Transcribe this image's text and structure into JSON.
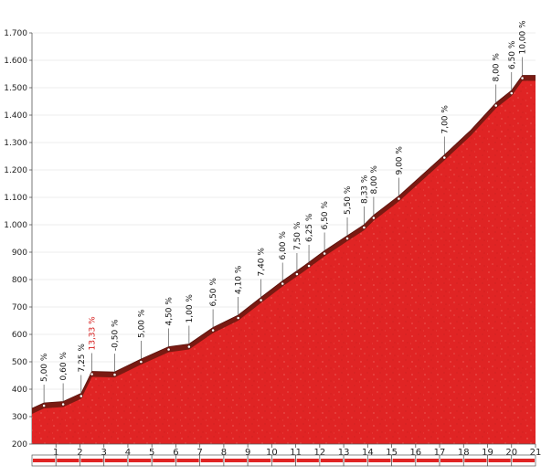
{
  "chart_data": {
    "type": "area",
    "title": "",
    "xlabel": "",
    "ylabel": "",
    "xlim": [
      0,
      21
    ],
    "ylim": [
      200,
      1700
    ],
    "y_ticks": [
      "1.700",
      "1.600",
      "1.500",
      "1.400",
      "1.300",
      "1.200",
      "1.100",
      "1.000",
      "900",
      "800",
      "700",
      "600",
      "500",
      "400",
      "300",
      "200"
    ],
    "x_ticks": [
      "1",
      "2",
      "3",
      "4",
      "5",
      "6",
      "7",
      "8",
      "9",
      "10",
      "11",
      "12",
      "13",
      "14",
      "15",
      "16",
      "17",
      "18",
      "19",
      "20",
      "21"
    ],
    "grid": "horizontal",
    "colors": {
      "fill": "#e02424",
      "top_band": "#7a1a12",
      "steep_label": "#d61a1a",
      "grid": "#e6e6e6"
    },
    "profile": [
      {
        "x": 0.0,
        "y": 330
      },
      {
        "x": 0.5,
        "y": 350
      },
      {
        "x": 1.3,
        "y": 355
      },
      {
        "x": 2.05,
        "y": 385
      },
      {
        "x": 2.5,
        "y": 465
      },
      {
        "x": 3.45,
        "y": 463
      },
      {
        "x": 4.55,
        "y": 510
      },
      {
        "x": 5.7,
        "y": 555
      },
      {
        "x": 6.55,
        "y": 565
      },
      {
        "x": 7.55,
        "y": 625
      },
      {
        "x": 8.6,
        "y": 670
      },
      {
        "x": 9.55,
        "y": 735
      },
      {
        "x": 10.45,
        "y": 795
      },
      {
        "x": 11.35,
        "y": 850
      },
      {
        "x": 12.2,
        "y": 905
      },
      {
        "x": 13.15,
        "y": 960
      },
      {
        "x": 13.85,
        "y": 1000
      },
      {
        "x": 14.25,
        "y": 1035
      },
      {
        "x": 15.3,
        "y": 1105
      },
      {
        "x": 17.2,
        "y": 1255
      },
      {
        "x": 18.3,
        "y": 1345
      },
      {
        "x": 19.35,
        "y": 1445
      },
      {
        "x": 20.0,
        "y": 1490
      },
      {
        "x": 20.45,
        "y": 1545
      },
      {
        "x": 21.0,
        "y": 1545
      }
    ],
    "gradient_labels": [
      {
        "text": "5,00 %",
        "x": 0.5,
        "y": 350
      },
      {
        "text": "0,60 %",
        "x": 1.3,
        "y": 355
      },
      {
        "text": "7,25 %",
        "x": 2.05,
        "y": 385
      },
      {
        "text": "13,33 %",
        "x": 2.5,
        "y": 465,
        "steep": true
      },
      {
        "text": "-0,50 %",
        "x": 3.45,
        "y": 463
      },
      {
        "text": "5,00 %",
        "x": 4.55,
        "y": 510
      },
      {
        "text": "4,50 %",
        "x": 5.7,
        "y": 555
      },
      {
        "text": "1,00 %",
        "x": 6.55,
        "y": 565
      },
      {
        "text": "6,50 %",
        "x": 7.55,
        "y": 625
      },
      {
        "text": "4,10 %",
        "x": 8.6,
        "y": 670
      },
      {
        "text": "7,40 %",
        "x": 9.55,
        "y": 735
      },
      {
        "text": "6,00 %",
        "x": 10.45,
        "y": 795
      },
      {
        "text": "7,50 %",
        "x": 11.05,
        "y": 830
      },
      {
        "text": "6,25 %",
        "x": 11.55,
        "y": 860
      },
      {
        "text": "6,50 %",
        "x": 12.2,
        "y": 905
      },
      {
        "text": "5,50 %",
        "x": 13.15,
        "y": 960
      },
      {
        "text": "8,33 %",
        "x": 13.85,
        "y": 1000
      },
      {
        "text": "8,00 %",
        "x": 14.25,
        "y": 1035
      },
      {
        "text": "9,00 %",
        "x": 15.3,
        "y": 1105
      },
      {
        "text": "7,00 %",
        "x": 17.2,
        "y": 1255
      },
      {
        "text": "8,00 %",
        "x": 19.35,
        "y": 1445
      },
      {
        "text": "6,50 %",
        "x": 20.0,
        "y": 1490
      },
      {
        "text": "10,00 %",
        "x": 20.45,
        "y": 1545
      }
    ]
  }
}
